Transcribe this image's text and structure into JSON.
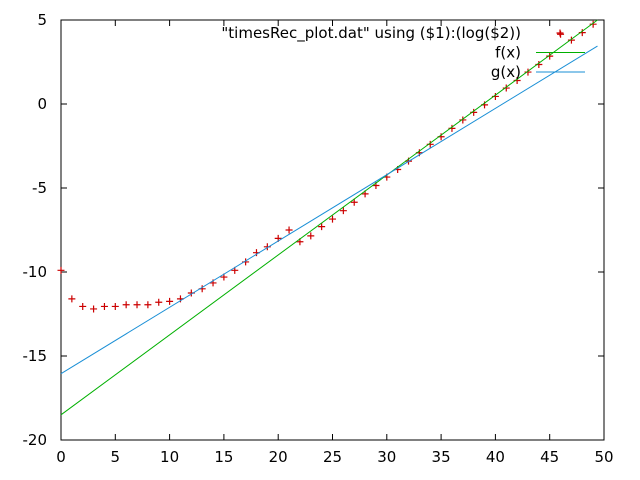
{
  "chart_data": {
    "type": "scatter",
    "title": "",
    "xlabel": "",
    "ylabel": "",
    "xlim": [
      0,
      50
    ],
    "ylim": [
      -20,
      5
    ],
    "x_ticks": [
      0,
      5,
      10,
      15,
      20,
      25,
      30,
      35,
      40,
      45,
      50
    ],
    "y_ticks": [
      -20,
      -15,
      -10,
      -5,
      0,
      5
    ],
    "x_tick_labels": [
      "0",
      "5",
      "10",
      "15",
      "20",
      "25",
      "30",
      "35",
      "40",
      "45",
      "50"
    ],
    "y_tick_labels": [
      "-20",
      "-15",
      "-10",
      "-5",
      "0",
      "5"
    ],
    "grid": false,
    "legend": "top-right",
    "series": [
      {
        "name": "\"timesRec_plot.dat\" using ($1):(log($2))",
        "kind": "points",
        "marker": "plus",
        "color": "#cc0000",
        "x": [
          0,
          1,
          2,
          3,
          4,
          5,
          6,
          7,
          8,
          9,
          10,
          11,
          12,
          13,
          14,
          15,
          16,
          17,
          18,
          19,
          20,
          21,
          22,
          23,
          24,
          25,
          26,
          27,
          28,
          29,
          30,
          31,
          32,
          33,
          34,
          35,
          36,
          37,
          38,
          39,
          40,
          41,
          42,
          43,
          44,
          45,
          46,
          47,
          48,
          49
        ],
        "y": [
          -9.9,
          -11.6,
          -12.05,
          -12.2,
          -12.05,
          -12.05,
          -11.95,
          -11.95,
          -11.95,
          -11.8,
          -11.75,
          -11.6,
          -11.25,
          -11.0,
          -10.65,
          -10.3,
          -9.9,
          -9.4,
          -8.85,
          -8.5,
          -8.0,
          -7.5,
          -8.2,
          -7.85,
          -7.3,
          -6.85,
          -6.35,
          -5.85,
          -5.35,
          -4.85,
          -4.35,
          -3.9,
          -3.4,
          -2.9,
          -2.4,
          -1.95,
          -1.45,
          -0.95,
          -0.5,
          -0.05,
          0.45,
          0.95,
          1.4,
          1.9,
          2.35,
          2.85,
          4.15,
          3.8,
          4.25,
          4.75
        ]
      },
      {
        "name": "f(x)",
        "kind": "line",
        "color": "#00b000",
        "x": [
          0,
          49.4
        ],
        "y": [
          -18.5,
          5.0
        ]
      },
      {
        "name": "g(x)",
        "kind": "line",
        "color": "#1a8fd6",
        "x": [
          0,
          49.4
        ],
        "y": [
          -16.05,
          3.45
        ]
      }
    ]
  }
}
